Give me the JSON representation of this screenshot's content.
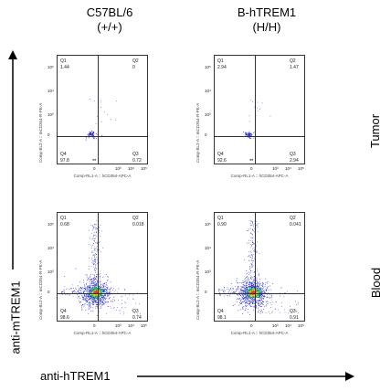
{
  "columns": [
    {
      "title_line1": "C57BL/6",
      "title_line2": "(+/+)"
    },
    {
      "title_line1": "B-hTREM1",
      "title_line2": "(H/H)"
    }
  ],
  "rows": [
    {
      "label": "Tumor"
    },
    {
      "label": "Blood"
    }
  ],
  "y_axis_label": "anti-mTREM1",
  "x_axis_label": "anti-hTREM1",
  "plot_axis": {
    "ylabel": "Comp-BL2-A :: mCD354-R-PE-A",
    "xlabel": "Comp-RL1-A :: hCD354-APC-A",
    "y_ticks": [
      "10⁵",
      "10⁴",
      "10³",
      "0"
    ],
    "x_ticks": [
      "0",
      "10³",
      "10⁴",
      "10⁵"
    ]
  },
  "quadrant_names": {
    "q1": "Q1",
    "q2": "Q2",
    "q3": "Q3",
    "q4": "Q4"
  },
  "chart_data": [
    {
      "type": "scatter",
      "panel": "C57BL/6 Tumor",
      "quadrants": {
        "Q1": "1.44",
        "Q2": "0",
        "Q3": "0.72",
        "Q4": "97.8"
      }
    },
    {
      "type": "scatter",
      "panel": "B-hTREM1 Tumor",
      "quadrants": {
        "Q1": "2.94",
        "Q2": "1.47",
        "Q3": "2.94",
        "Q4": "92.6"
      }
    },
    {
      "type": "scatter",
      "panel": "C57BL/6 Blood",
      "quadrants": {
        "Q1": "0.68",
        "Q2": "0.018",
        "Q3": "0.74",
        "Q4": "98.6"
      }
    },
    {
      "type": "scatter",
      "panel": "B-hTREM1 Blood",
      "quadrants": {
        "Q1": "0.90",
        "Q2": "0.041",
        "Q3": "0.91",
        "Q4": "98.1"
      }
    }
  ],
  "colors": {
    "sparse_dot": "#2323d0",
    "dense_core": "#ff3030",
    "ring": "#20c040",
    "axes": "#333333"
  }
}
